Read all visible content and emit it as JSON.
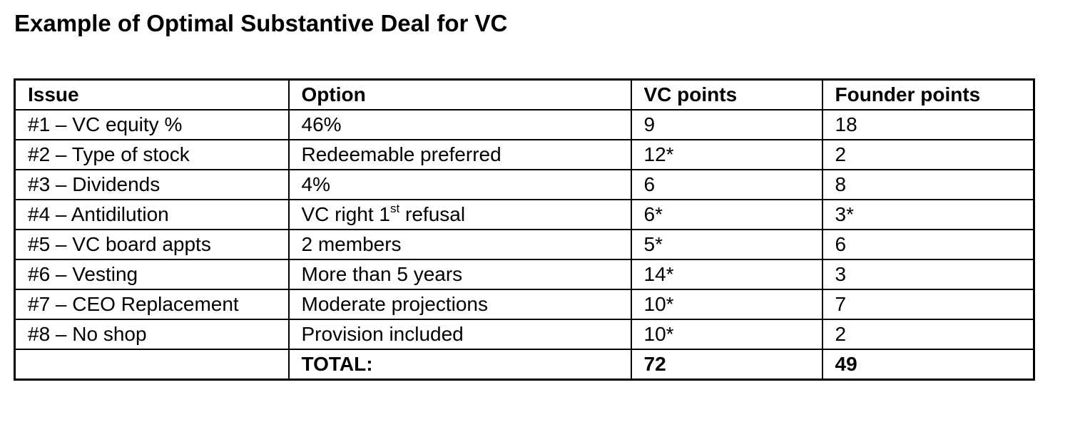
{
  "title": "Example of Optimal Substantive Deal for VC",
  "table": {
    "headers": [
      "Issue",
      "Option",
      "VC points",
      "Founder points"
    ],
    "rows": [
      {
        "issue": "#1 – VC equity %",
        "option": "46%",
        "vc_points": "9",
        "founder_points": "18"
      },
      {
        "issue": "#2 – Type of stock",
        "option": "Redeemable preferred",
        "vc_points": "12*",
        "founder_points": "2"
      },
      {
        "issue": "#3 – Dividends",
        "option": "4%",
        "vc_points": "6",
        "founder_points": "8"
      },
      {
        "issue": "#4 – Antidilution",
        "option_prefix": "VC right 1",
        "option_sup": "st",
        "option_suffix": " refusal",
        "vc_points": "6*",
        "founder_points": "3*"
      },
      {
        "issue": "#5 – VC board appts",
        "option": "2 members",
        "vc_points": "5*",
        "founder_points": "6"
      },
      {
        "issue": "#6 – Vesting",
        "option": "More than 5 years",
        "vc_points": "14*",
        "founder_points": "3"
      },
      {
        "issue": "#7 – CEO Replacement",
        "option": "Moderate projections",
        "vc_points": "10*",
        "founder_points": "7"
      },
      {
        "issue": "#8 – No shop",
        "option": "Provision included",
        "vc_points": "10*",
        "founder_points": "2"
      }
    ],
    "total": {
      "issue": "",
      "label": "TOTAL:",
      "vc_points": "72",
      "founder_points": "49"
    }
  }
}
